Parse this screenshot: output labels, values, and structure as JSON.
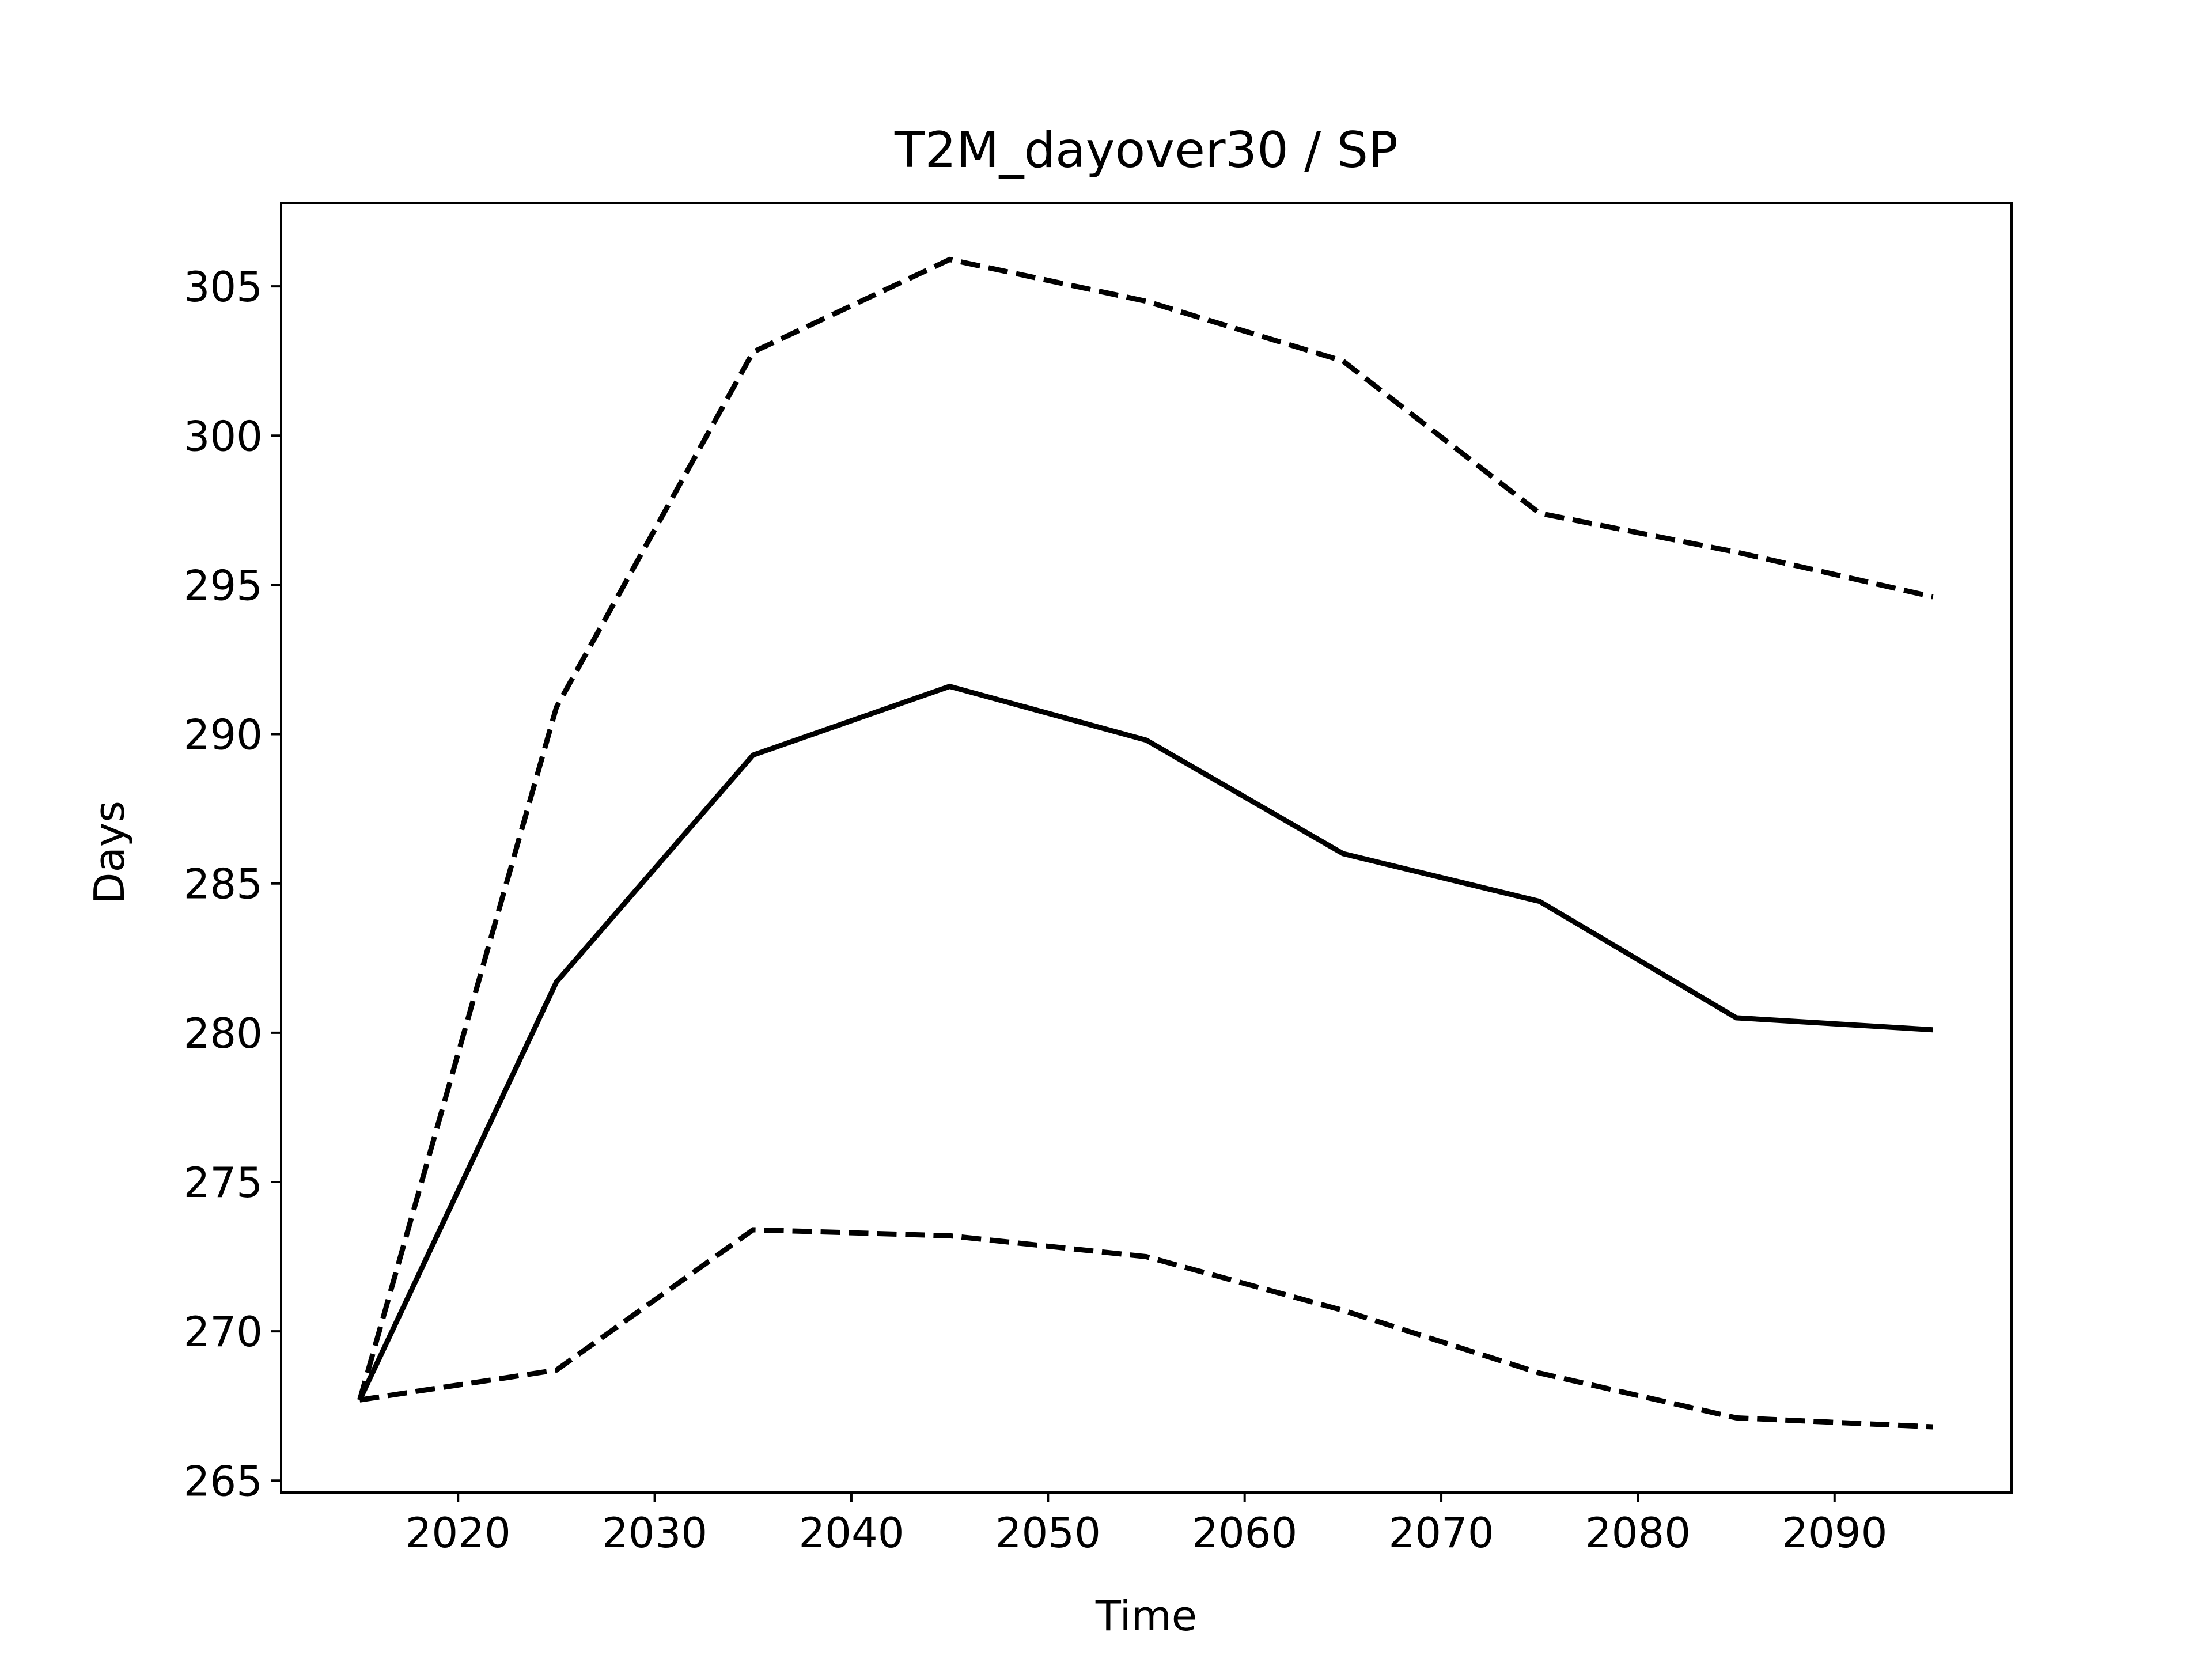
{
  "chart_data": {
    "type": "line",
    "title": "T2M_dayover30 / SP",
    "xlabel": "Time",
    "ylabel": "Days",
    "xlim": [
      2011,
      2099
    ],
    "ylim": [
      264.6,
      307.8
    ],
    "xticks": [
      2020,
      2030,
      2040,
      2050,
      2060,
      2070,
      2080,
      2090
    ],
    "yticks": [
      265,
      270,
      275,
      280,
      285,
      290,
      295,
      300,
      305
    ],
    "grid": false,
    "legend": "none",
    "x": [
      2015,
      2025,
      2035,
      2045,
      2055,
      2065,
      2075,
      2085,
      2095
    ],
    "series": [
      {
        "style": "solid",
        "color": "#000000",
        "values": [
          267.7,
          281.7,
          289.3,
          291.6,
          289.8,
          286.0,
          284.4,
          280.5,
          280.1
        ]
      },
      {
        "style": "dashed",
        "color": "#000000",
        "values": [
          267.7,
          290.9,
          302.8,
          305.9,
          304.5,
          302.5,
          297.4,
          296.1,
          294.6
        ]
      },
      {
        "style": "dashed",
        "color": "#000000",
        "values": [
          267.7,
          268.7,
          273.4,
          273.2,
          272.5,
          270.7,
          268.6,
          267.1,
          266.8
        ]
      }
    ]
  }
}
